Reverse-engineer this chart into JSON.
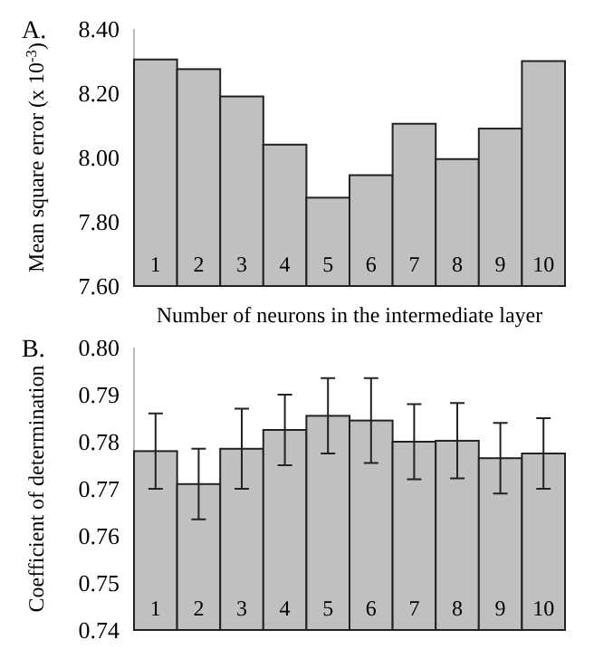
{
  "chart_data": [
    {
      "type": "bar",
      "title": "A.",
      "ylabel": "Mean square error  (x 10$^{-3}$)",
      "xlabel": "Number of neurons in the intermediate layer",
      "categories": [
        "1",
        "2",
        "3",
        "4",
        "5",
        "6",
        "7",
        "8",
        "9",
        "10"
      ],
      "values": [
        8.305,
        8.275,
        8.19,
        8.04,
        7.875,
        7.945,
        8.105,
        7.995,
        8.09,
        8.3
      ],
      "color": "#c0c0c0",
      "ylim": [
        7.6,
        8.4
      ],
      "yticks": [
        {
          "value": 7.6,
          "label": "7.60"
        },
        {
          "value": 7.8,
          "label": "7.80"
        },
        {
          "value": 8.0,
          "label": "8.00"
        },
        {
          "value": 8.2,
          "label": "8.20"
        },
        {
          "value": 8.4,
          "label": "8.40"
        }
      ]
    },
    {
      "type": "bar",
      "title": "B.",
      "ylabel": "Coefficient of determination",
      "categories": [
        "1",
        "2",
        "3",
        "4",
        "5",
        "6",
        "7",
        "8",
        "9",
        "10"
      ],
      "values": [
        0.778,
        0.771,
        0.7785,
        0.7825,
        0.7855,
        0.7845,
        0.78,
        0.7802,
        0.7765,
        0.7775
      ],
      "errors": [
        0.008,
        0.0075,
        0.0085,
        0.0075,
        0.008,
        0.009,
        0.008,
        0.008,
        0.0075,
        0.0075
      ],
      "color": "#c0c0c0",
      "ylim": [
        0.74,
        0.8
      ],
      "yticks": [
        {
          "value": 0.74,
          "label": "0.74"
        },
        {
          "value": 0.75,
          "label": "0.75"
        },
        {
          "value": 0.76,
          "label": "0.76"
        },
        {
          "value": 0.77,
          "label": "0.77"
        },
        {
          "value": 0.78,
          "label": "0.78"
        },
        {
          "value": 0.79,
          "label": "0.79"
        },
        {
          "value": 0.8,
          "label": "0.80"
        }
      ]
    }
  ]
}
